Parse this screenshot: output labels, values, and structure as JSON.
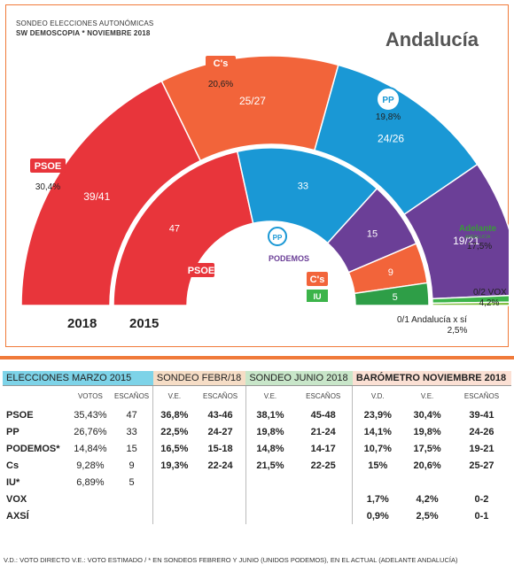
{
  "header": {
    "source_line1": "SONDEO ELECCIONES AUTONÓMICAS",
    "source_line2": "SW DEMOSCOPIA * NOVIEMBRE 2018",
    "region": "Andalucía"
  },
  "chart_data": {
    "type": "parliament-semicircle",
    "total_seats": 109,
    "rings": [
      {
        "label": "2018",
        "segments": [
          {
            "party": "PSOE",
            "seats_label": "39/41",
            "seats": 40,
            "color": "#e8353b"
          },
          {
            "party": "Cs",
            "seats_label": "25/27",
            "seats": 26,
            "color": "#f2643a"
          },
          {
            "party": "PP",
            "seats_label": "24/26",
            "seats": 25,
            "color": "#1a98d5"
          },
          {
            "party": "Adelante Andalucía",
            "seats_label": "19/21",
            "seats": 20,
            "color": "#6b3f97"
          },
          {
            "party": "VOX",
            "seats_label": "0/2",
            "seats": 1,
            "color": "#3cb44a"
          },
          {
            "party": "Andalucía x sí",
            "seats_label": "0/1",
            "seats": 0.5,
            "color": "#7cbd3b"
          }
        ]
      },
      {
        "label": "2015",
        "segments": [
          {
            "party": "PSOE",
            "seats_label": "47",
            "seats": 47,
            "color": "#e8353b"
          },
          {
            "party": "PP",
            "seats_label": "33",
            "seats": 33,
            "color": "#1a98d5"
          },
          {
            "party": "Podemos",
            "seats_label": "15",
            "seats": 15,
            "color": "#6b3f97"
          },
          {
            "party": "Cs",
            "seats_label": "9",
            "seats": 9,
            "color": "#f2643a"
          },
          {
            "party": "IU",
            "seats_label": "5",
            "seats": 5,
            "color": "#2e9e47"
          }
        ]
      }
    ],
    "party_labels_2018": [
      {
        "name": "PSOE",
        "pct": "30,4%"
      },
      {
        "name": "C's",
        "pct": "20,6%"
      },
      {
        "name": "PP",
        "pct": "19,8%"
      },
      {
        "name": "Adelante",
        "sub": "ANDALUCÍA",
        "pct": "17,5%"
      },
      {
        "name": "VOX",
        "seats": "0/2",
        "pct": "4,2%"
      },
      {
        "name": "Andalucía x sí",
        "seats": "0/1",
        "pct": "2,5%"
      }
    ],
    "party_labels_2015": [
      "PSOE",
      "PP",
      "PODEMOS",
      "C's",
      "IU"
    ]
  },
  "table": {
    "groups": [
      "ELECCIONES MARZO 2015",
      "SONDEO FEBR/18",
      "SONDEO JUNIO 2018",
      "BARÓMETRO NOVIEMBRE 2018"
    ],
    "subheaders": [
      "",
      "VOTOS",
      "ESCAÑOS",
      "V.E.",
      "ESCAÑOS",
      "V.E.",
      "ESCAÑOS",
      "V.D.",
      "V.E.",
      "ESCAÑOS"
    ],
    "rows": [
      [
        "PSOE",
        "35,43%",
        "47",
        "36,8%",
        "43-46",
        "38,1%",
        "45-48",
        "23,9%",
        "30,4%",
        "39-41"
      ],
      [
        "PP",
        "26,76%",
        "33",
        "22,5%",
        "24-27",
        "19,8%",
        "21-24",
        "14,1%",
        "19,8%",
        "24-26"
      ],
      [
        "PODEMOS*",
        "14,84%",
        "15",
        "16,5%",
        "15-18",
        "14,8%",
        "14-17",
        "10,7%",
        "17,5%",
        "19-21"
      ],
      [
        "Cs",
        "9,28%",
        "9",
        "19,3%",
        "22-24",
        "21,5%",
        "22-25",
        "15%",
        "20,6%",
        "25-27"
      ],
      [
        "IU*",
        "6,89%",
        "5",
        "",
        "",
        "",
        "",
        "",
        "",
        ""
      ],
      [
        "VOX",
        "",
        "",
        "",
        "",
        "",
        "",
        "1,7%",
        "4,2%",
        "0-2"
      ],
      [
        "AXSÍ",
        "",
        "",
        "",
        "",
        "",
        "",
        "0,9%",
        "2,5%",
        "0-1"
      ]
    ]
  },
  "footnote": "V.D.: VOTO DIRECTO  V.E.: VOTO ESTIMADO / * EN SONDEOS FEBRERO Y JUNIO (UNIDOS PODEMOS), EN EL ACTUAL (ADELANTE ANDALUCÍA)"
}
